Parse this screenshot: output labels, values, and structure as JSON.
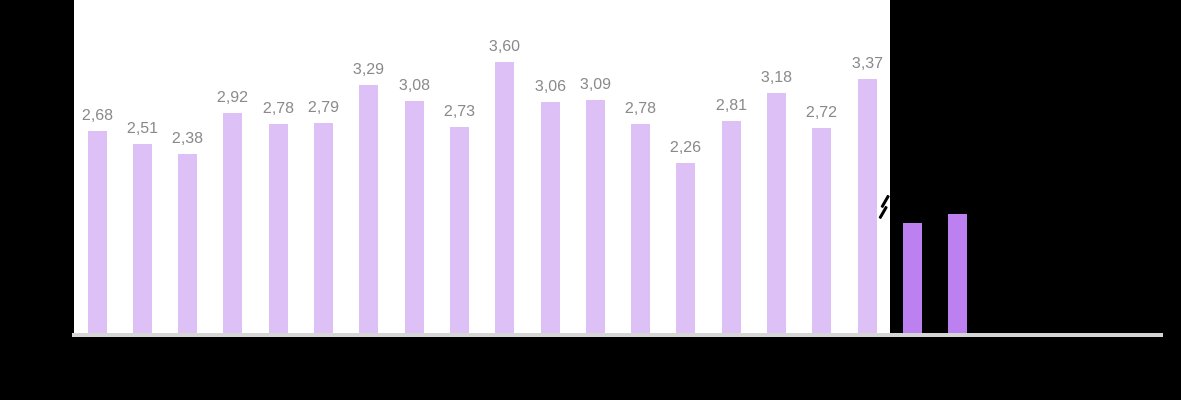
{
  "chart_data": {
    "type": "bar",
    "title": "",
    "xlabel": "",
    "ylabel": "",
    "decimal_separator": ",",
    "value_axis_visible": false,
    "category_labels_visible": false,
    "grid": false,
    "axis_break_after_main_series": true,
    "main_series": {
      "name": "labeled-bars",
      "values": [
        2.68,
        2.51,
        2.38,
        2.92,
        2.78,
        2.79,
        3.29,
        3.08,
        2.73,
        3.6,
        3.06,
        3.09,
        2.78,
        2.26,
        2.81,
        3.18,
        2.72,
        3.37
      ],
      "labels": [
        "2,68",
        "2,51",
        "2,38",
        "2,92",
        "2,78",
        "2,79",
        "3,29",
        "3,08",
        "2,73",
        "3,60",
        "3,06",
        "3,09",
        "2,78",
        "2,26",
        "2,81",
        "3,18",
        "2,72",
        "3,37"
      ]
    },
    "extra_series": {
      "name": "unlabeled-bars-after-axis-break",
      "approx_values_at_main_scale": [
        1.46,
        1.58
      ],
      "labels_visible": false
    },
    "colors": {
      "main_series_fill": "#ddc0f5",
      "extra_series_fill": "#bd80f0",
      "value_label_text": "#8a8a8a",
      "axis_line": "#d5d5d5",
      "plot_background": "#ffffff",
      "page_background": "#000000"
    }
  }
}
